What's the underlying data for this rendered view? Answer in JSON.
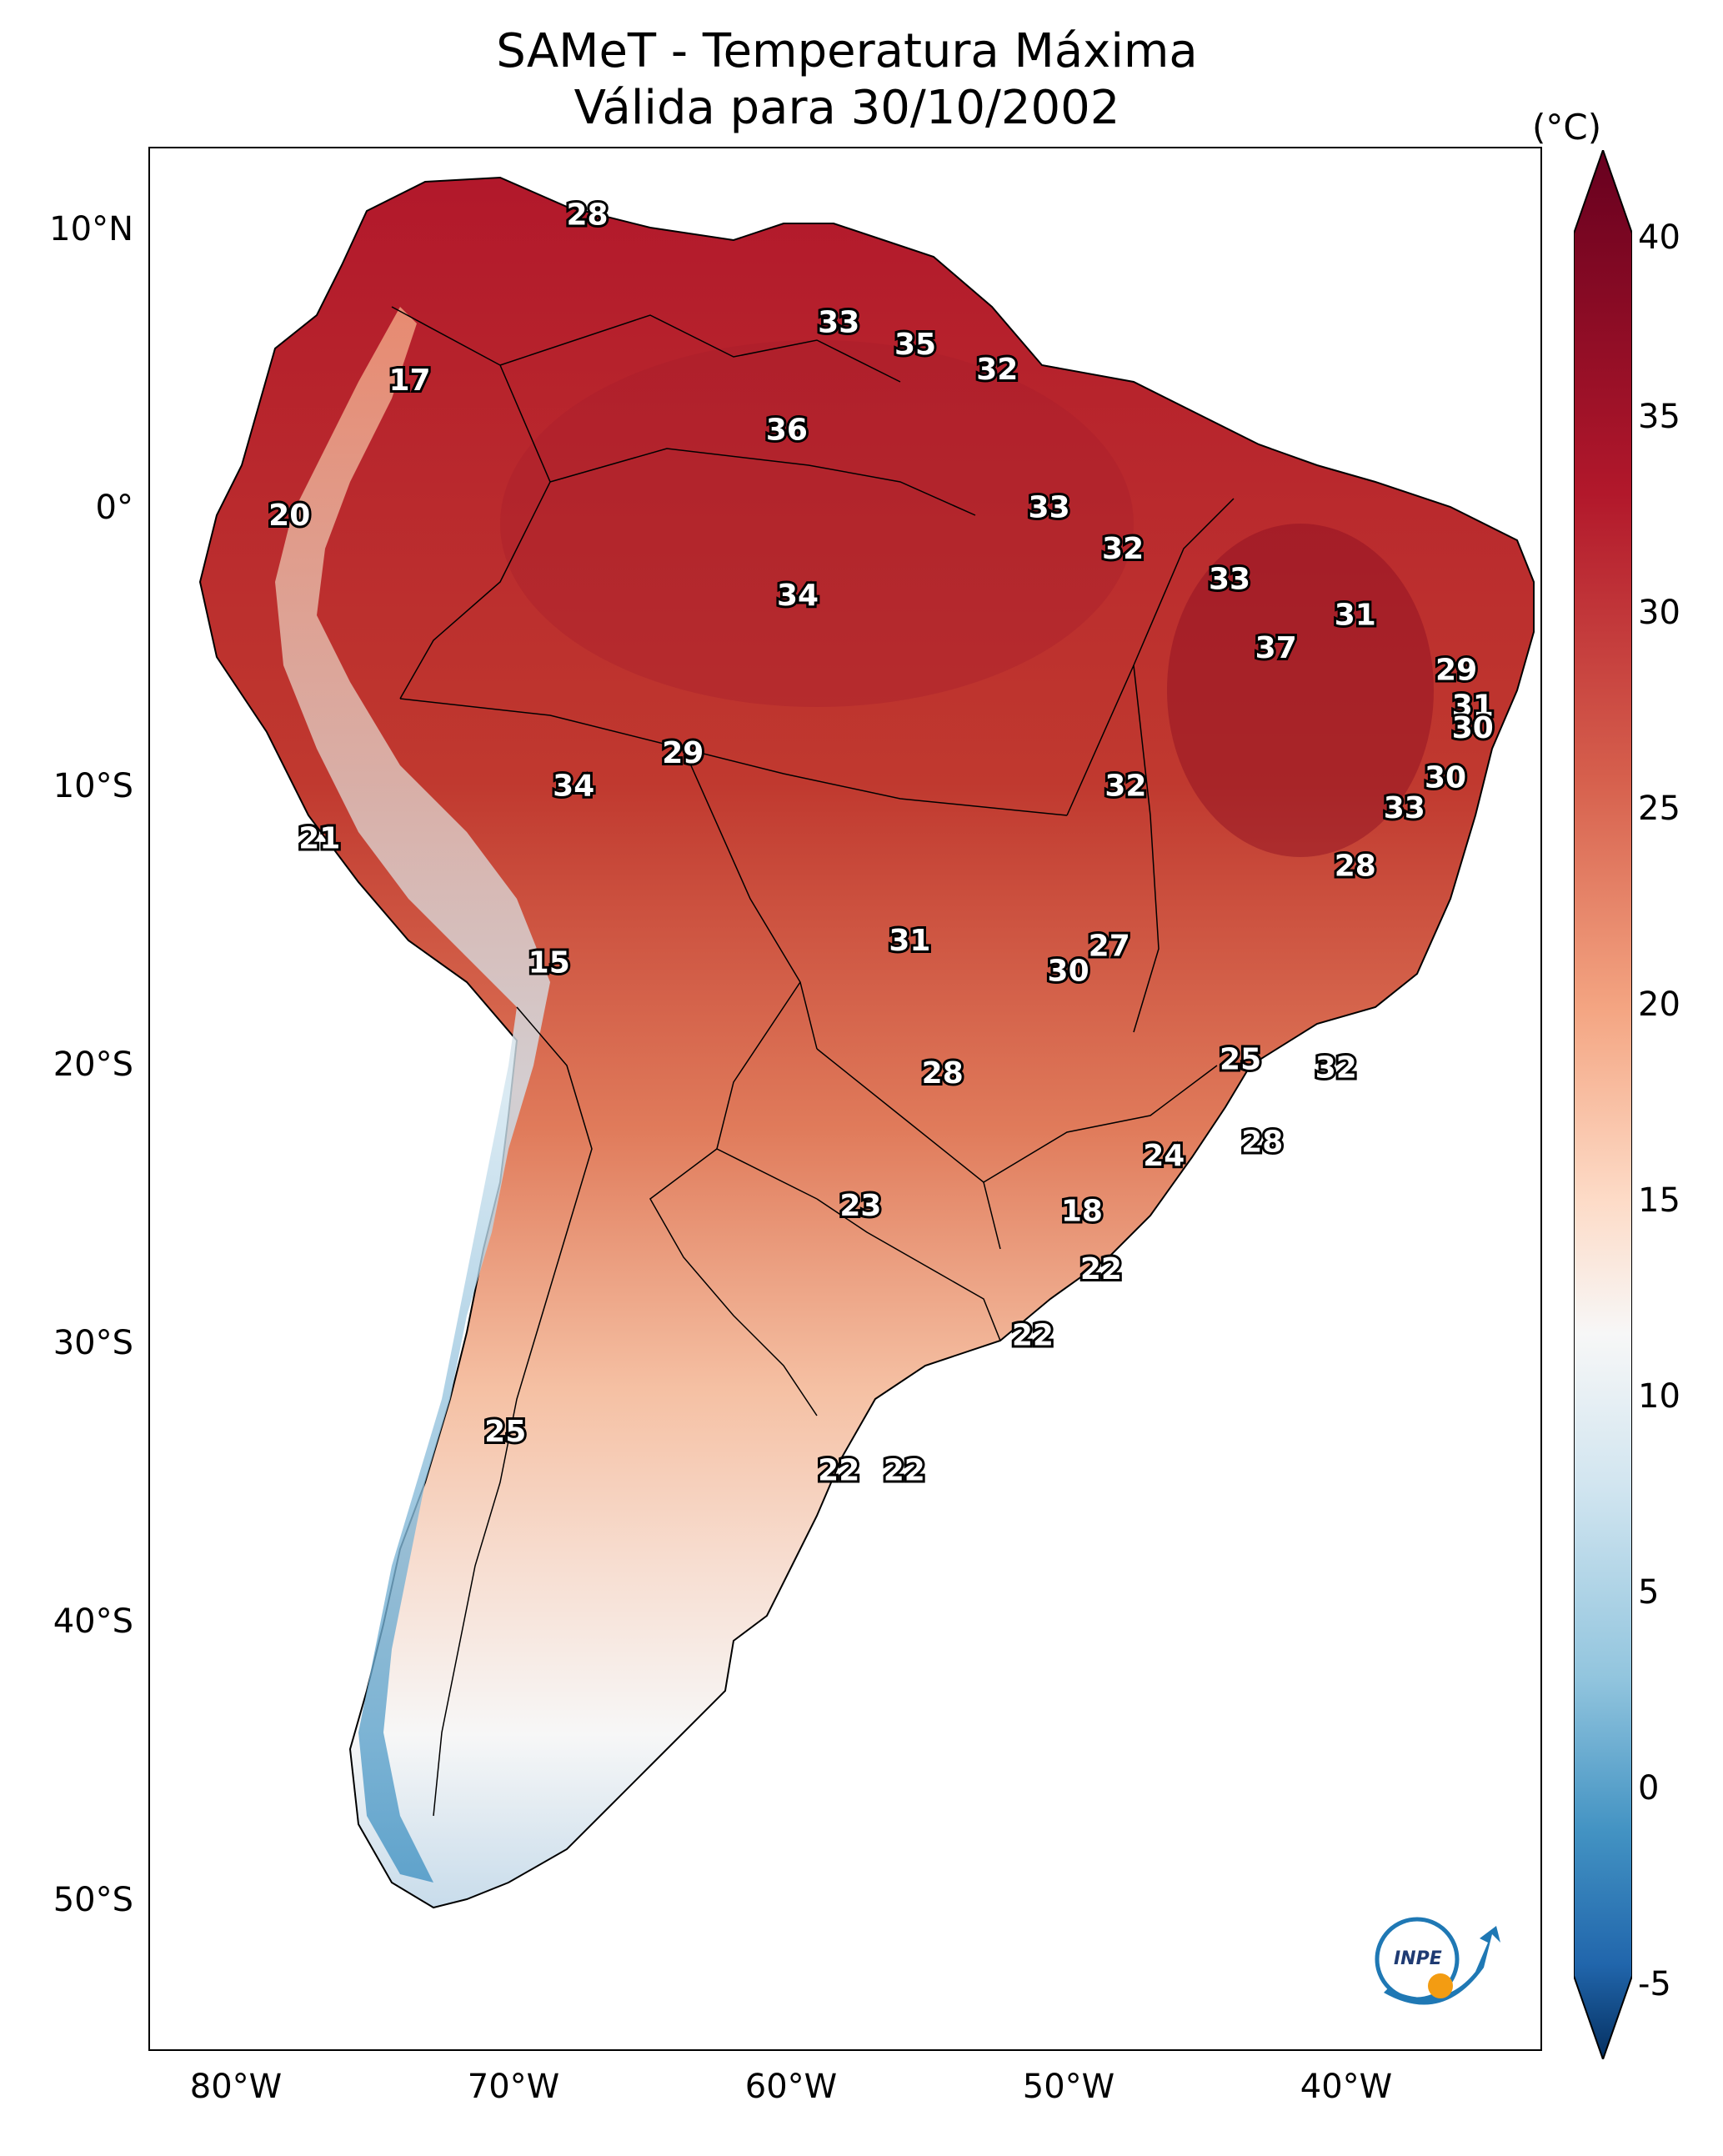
{
  "title": {
    "line1": "SAMeT - Temperatura Máxima",
    "line2": "Válida para 30/10/2002"
  },
  "axes": {
    "lat_ticks": [
      "10°N",
      "0°",
      "10°S",
      "20°S",
      "30°S",
      "40°S",
      "50°S"
    ],
    "lon_ticks": [
      "80°W",
      "70°W",
      "60°W",
      "50°W",
      "40°W"
    ]
  },
  "colorbar": {
    "unit": "(°C)",
    "ticks": [
      "40",
      "35",
      "30",
      "25",
      "20",
      "15",
      "10",
      "5",
      "0",
      "-5"
    ],
    "colors": {
      "max": "#67001f",
      "high": "#b2182b",
      "mid_high": "#ef8a62",
      "mid": "#f7f7f7",
      "mid_low": "#67a9cf",
      "low": "#2166ac",
      "min": "#053061"
    }
  },
  "temperature_labels": [
    {
      "value": "28",
      "lon": -67.0,
      "lat": 10.6
    },
    {
      "value": "33",
      "lon": -57.8,
      "lat": 6.7
    },
    {
      "value": "35",
      "lon": -55.0,
      "lat": 5.9
    },
    {
      "value": "32",
      "lon": -52.0,
      "lat": 5.0
    },
    {
      "value": "17",
      "lon": -73.5,
      "lat": 4.6
    },
    {
      "value": "36",
      "lon": -59.7,
      "lat": 2.8
    },
    {
      "value": "20",
      "lon": -77.9,
      "lat": -0.3
    },
    {
      "value": "33",
      "lon": -50.1,
      "lat": 0.0
    },
    {
      "value": "32",
      "lon": -47.4,
      "lat": -1.5
    },
    {
      "value": "33",
      "lon": -43.5,
      "lat": -2.6
    },
    {
      "value": "34",
      "lon": -59.3,
      "lat": -3.2
    },
    {
      "value": "31",
      "lon": -38.9,
      "lat": -3.9
    },
    {
      "value": "37",
      "lon": -41.8,
      "lat": -5.1
    },
    {
      "value": "29",
      "lon": -35.2,
      "lat": -5.9
    },
    {
      "value": "31",
      "lon": -34.6,
      "lat": -7.2
    },
    {
      "value": "30",
      "lon": -34.6,
      "lat": -8.0
    },
    {
      "value": "29",
      "lon": -63.5,
      "lat": -8.9
    },
    {
      "value": "30",
      "lon": -35.6,
      "lat": -9.8
    },
    {
      "value": "34",
      "lon": -67.5,
      "lat": -10.1
    },
    {
      "value": "32",
      "lon": -47.3,
      "lat": -10.1
    },
    {
      "value": "33",
      "lon": -37.1,
      "lat": -10.9
    },
    {
      "value": "21",
      "lon": -76.8,
      "lat": -12.0
    },
    {
      "value": "28",
      "lon": -38.9,
      "lat": -13.0
    },
    {
      "value": "31",
      "lon": -55.2,
      "lat": -15.7
    },
    {
      "value": "27",
      "lon": -47.9,
      "lat": -15.9
    },
    {
      "value": "30",
      "lon": -49.4,
      "lat": -16.8
    },
    {
      "value": "15",
      "lon": -68.4,
      "lat": -16.5
    },
    {
      "value": "25",
      "lon": -43.1,
      "lat": -20.0
    },
    {
      "value": "32",
      "lon": -39.6,
      "lat": -20.3
    },
    {
      "value": "28",
      "lon": -54.0,
      "lat": -20.5
    },
    {
      "value": "28",
      "lon": -42.3,
      "lat": -23.0
    },
    {
      "value": "24",
      "lon": -45.9,
      "lat": -23.5
    },
    {
      "value": "23",
      "lon": -57.0,
      "lat": -25.3
    },
    {
      "value": "18",
      "lon": -48.9,
      "lat": -25.5
    },
    {
      "value": "22",
      "lon": -48.2,
      "lat": -27.6
    },
    {
      "value": "22",
      "lon": -50.7,
      "lat": -30.0
    },
    {
      "value": "25",
      "lon": -70.0,
      "lat": -33.5
    },
    {
      "value": "22",
      "lon": -57.8,
      "lat": -34.9
    },
    {
      "value": "22",
      "lon": -55.4,
      "lat": -34.9
    }
  ],
  "logo": {
    "text": "INPE"
  }
}
